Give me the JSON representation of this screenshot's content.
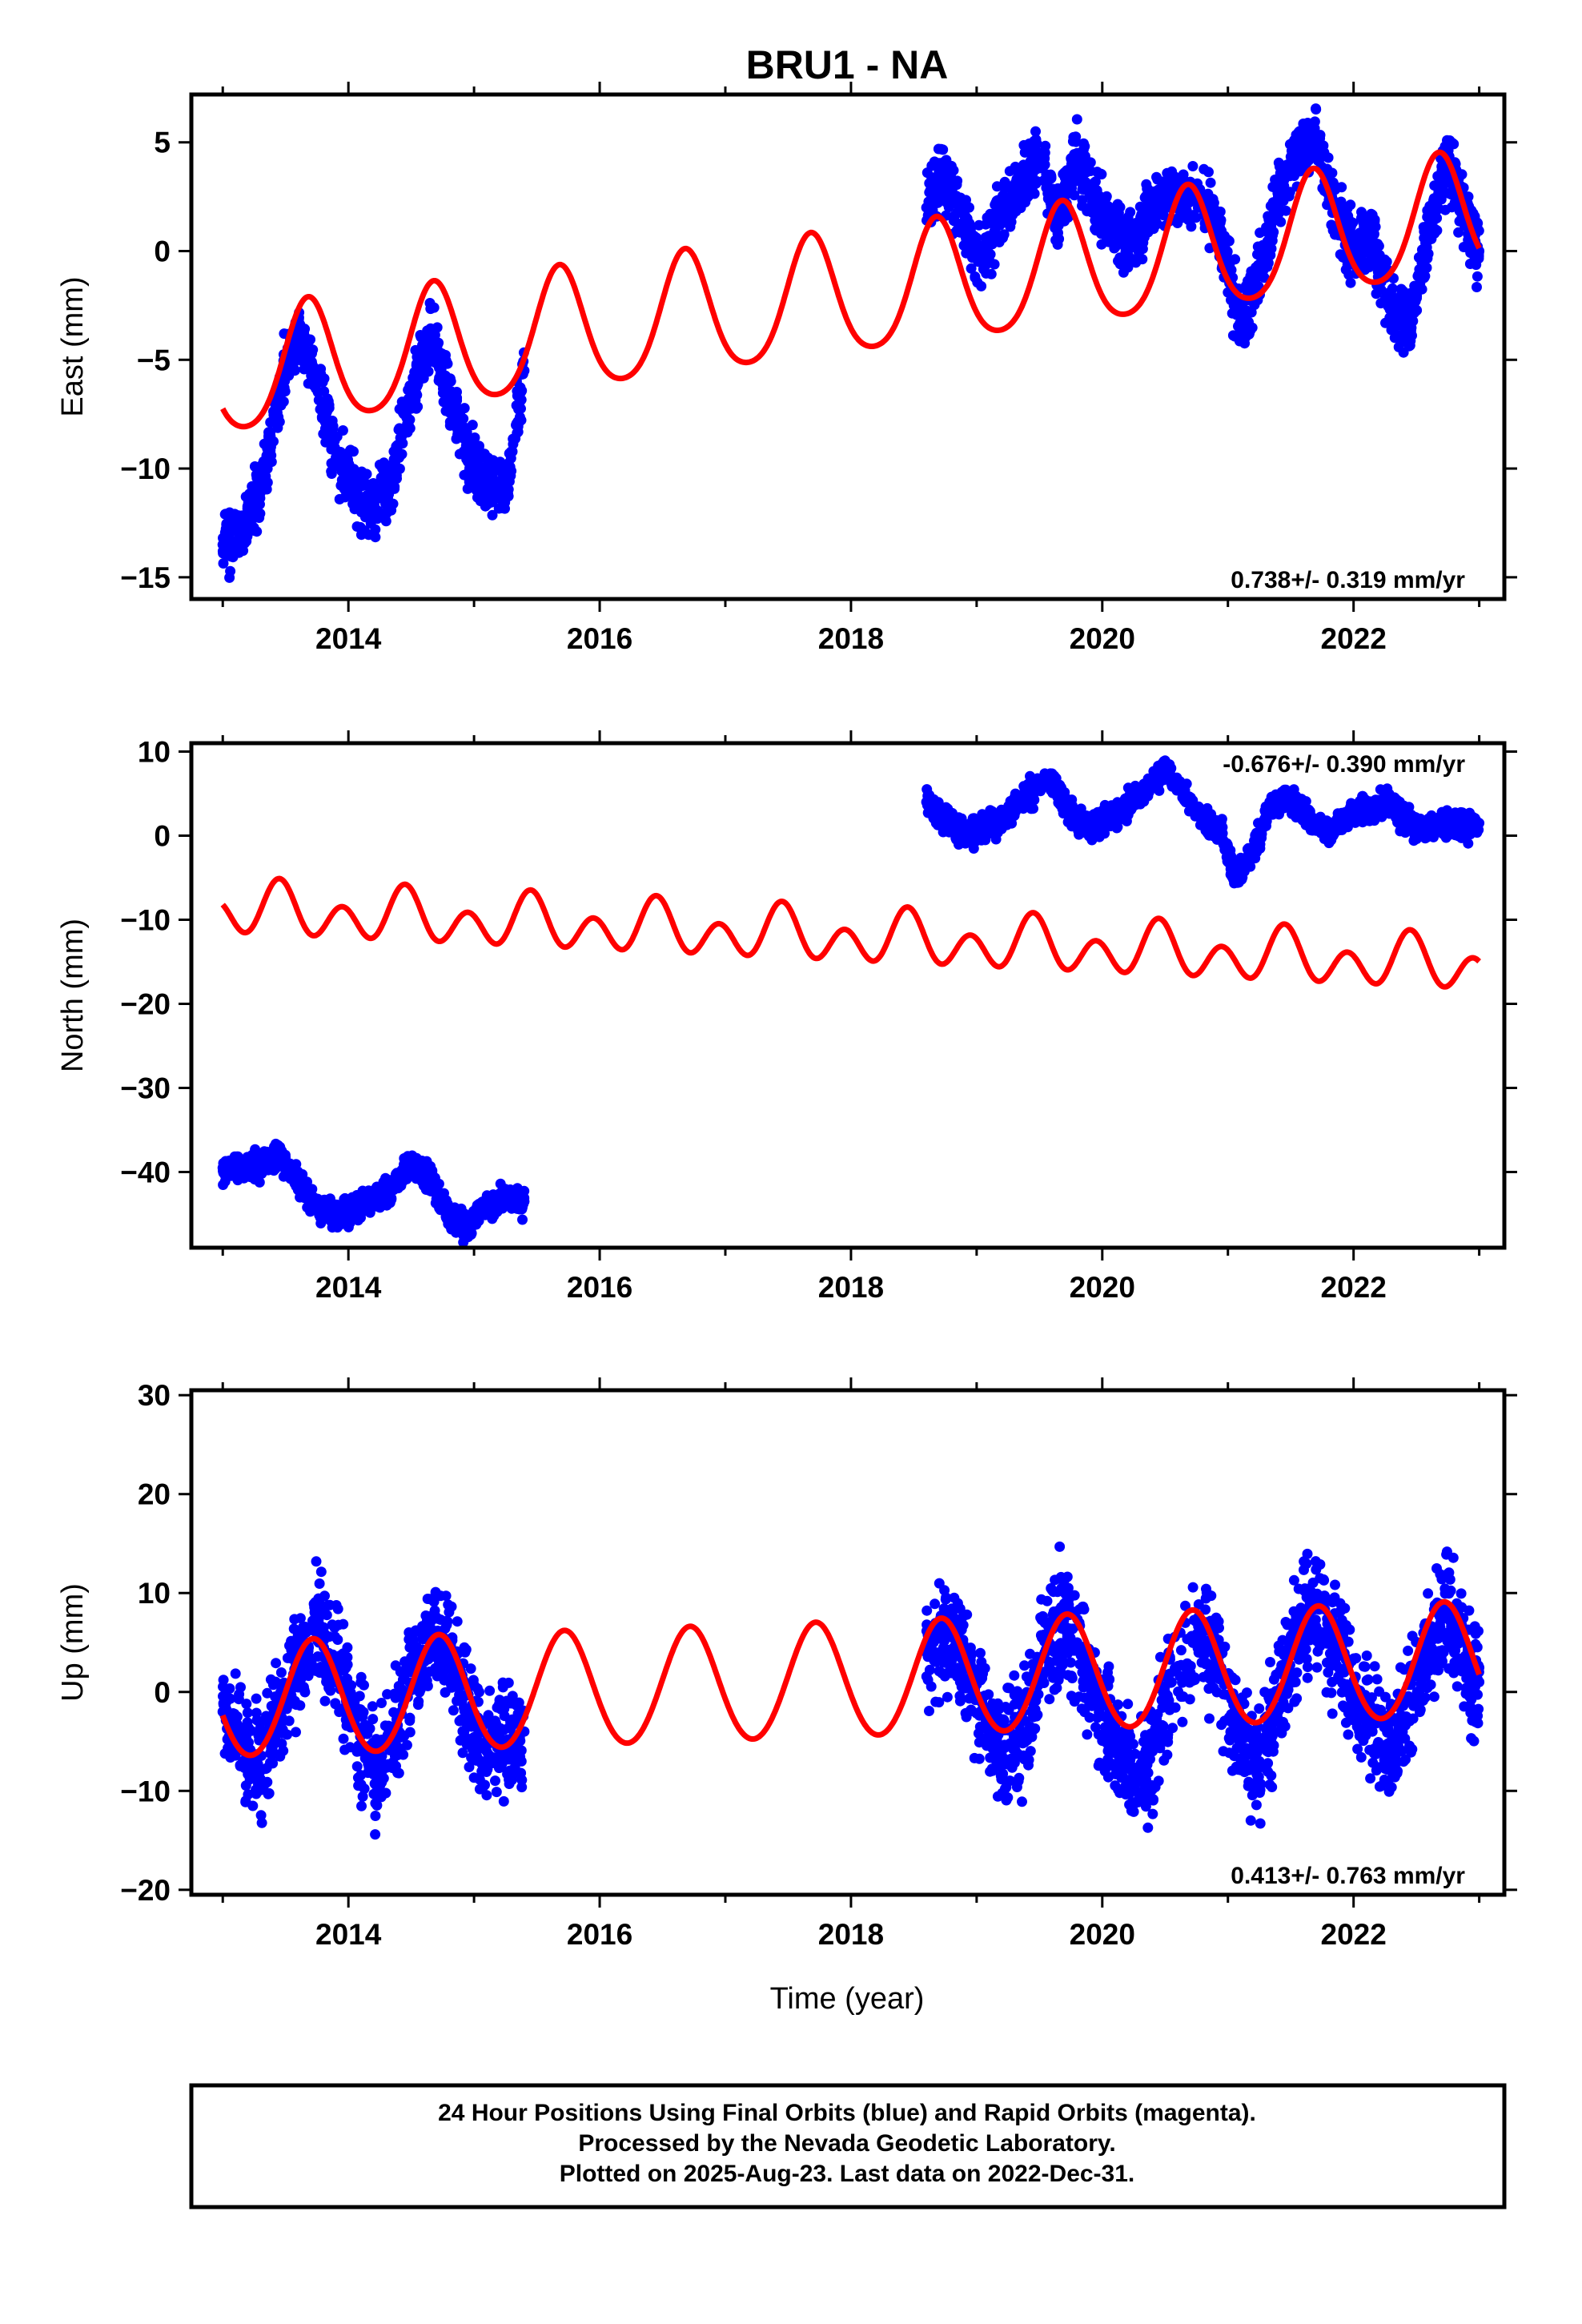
{
  "chart_title": "BRU1 - NA",
  "x_axis_label": "Time (year)",
  "footer": {
    "line1": "24 Hour Positions Using Final Orbits (blue) and Rapid Orbits (magenta).",
    "line2": "Processed by the Nevada Geodetic Laboratory.",
    "line3": "Plotted on 2025-Aug-23. Last data on 2022-Dec-31."
  },
  "colors": {
    "points": "#0000ff",
    "fit": "#ff0000",
    "axes": "#000000"
  },
  "chart_data": [
    {
      "type": "scatter",
      "title": "BRU1 - NA",
      "ylabel": "East (mm)",
      "xlabel": "",
      "xlim": [
        2012.75,
        2023.2
      ],
      "ylim": [
        -16,
        7.2
      ],
      "xticks": [
        2014,
        2016,
        2018,
        2020,
        2022
      ],
      "yticks": [
        5,
        0,
        -5,
        -10,
        -15
      ],
      "ytick_labels": [
        "5",
        "0",
        "−5",
        "−10",
        "−15"
      ],
      "rate_label": "0.738+/- 0.319 mm/yr",
      "rate_label_position": "bottom-right",
      "grid": false,
      "series": [
        {
          "kind": "points",
          "x": [
            2013.0,
            2013.15,
            2013.3,
            2013.45,
            2013.6,
            2013.75,
            2013.9,
            2014.05,
            2014.2,
            2014.35,
            2014.5,
            2014.65,
            2014.8,
            2014.95,
            2015.1,
            2015.25,
            2015.4,
            2018.6,
            2018.75,
            2018.9,
            2019.05,
            2019.2,
            2019.35,
            2019.5,
            2019.65,
            2019.8,
            2019.95,
            2020.1,
            2020.25,
            2020.4,
            2020.55,
            2020.8,
            2020.95,
            2021.1,
            2021.25,
            2021.4,
            2021.55,
            2021.7,
            2021.85,
            2022.0,
            2022.15,
            2022.3,
            2022.45,
            2022.6,
            2022.75,
            2022.9,
            2023.0
          ],
          "y": [
            -13.5,
            -13.0,
            -11.0,
            -6.5,
            -3.5,
            -6.0,
            -9.5,
            -11.0,
            -12.0,
            -10.5,
            -6.5,
            -4.0,
            -6.5,
            -9.5,
            -10.5,
            -11.0,
            -5.5,
            2.0,
            3.5,
            1.0,
            -0.5,
            2.0,
            3.0,
            4.5,
            1.5,
            4.5,
            2.0,
            1.0,
            0.5,
            2.0,
            2.5,
            2.5,
            0.5,
            -3.5,
            -1.0,
            2.5,
            4.5,
            5.0,
            2.0,
            0.0,
            0.5,
            -2.5,
            -3.5,
            1.0,
            4.0,
            1.5,
            0.0
          ]
        },
        {
          "kind": "fit",
          "intercept_2013": -5.8,
          "trend_mm_per_yr": 0.738,
          "annual_amplitude": 2.8,
          "annual_peak": 2013.68,
          "semiannual_amplitude": 0.4
        }
      ]
    },
    {
      "type": "scatter",
      "title": "",
      "ylabel": "North (mm)",
      "xlabel": "",
      "xlim": [
        2012.75,
        2023.2
      ],
      "ylim": [
        -49,
        11
      ],
      "xticks": [
        2014,
        2016,
        2018,
        2020,
        2022
      ],
      "yticks": [
        10,
        0,
        -10,
        -20,
        -30,
        -40
      ],
      "ytick_labels": [
        "10",
        "0",
        "−10",
        "−20",
        "−30",
        "−40"
      ],
      "rate_label": "-0.676+/- 0.390 mm/yr",
      "rate_label_position": "top-right",
      "grid": false,
      "series": [
        {
          "kind": "points",
          "x": [
            2013.0,
            2013.15,
            2013.3,
            2013.45,
            2013.6,
            2013.75,
            2013.9,
            2014.05,
            2014.2,
            2014.35,
            2014.5,
            2014.65,
            2014.8,
            2014.95,
            2015.1,
            2015.25,
            2015.4,
            2018.6,
            2018.75,
            2018.9,
            2019.05,
            2019.2,
            2019.4,
            2019.6,
            2019.75,
            2019.9,
            2020.05,
            2020.2,
            2020.35,
            2020.5,
            2020.8,
            2020.95,
            2021.05,
            2021.2,
            2021.35,
            2021.5,
            2021.65,
            2021.8,
            2021.95,
            2022.1,
            2022.25,
            2022.4,
            2022.55,
            2022.7,
            2022.85,
            2023.0
          ],
          "y": [
            -39.5,
            -39.5,
            -39.0,
            -38.0,
            -41.0,
            -44.0,
            -45.0,
            -44.5,
            -43.0,
            -42.0,
            -39.0,
            -41.0,
            -45.0,
            -46.5,
            -44.0,
            -43.0,
            -43.5,
            4.0,
            2.0,
            0.0,
            1.0,
            1.5,
            5.0,
            6.5,
            2.5,
            1.0,
            2.0,
            3.5,
            5.5,
            8.0,
            2.0,
            0.5,
            -5.0,
            -2.0,
            4.0,
            4.5,
            2.0,
            0.5,
            2.5,
            3.0,
            4.0,
            2.0,
            0.5,
            1.5,
            1.0,
            1.5
          ]
        },
        {
          "kind": "fit",
          "intercept_2013": -8.8,
          "trend_mm_per_yr": -0.676,
          "annual_amplitude": 1.5,
          "annual_peak": 2013.45,
          "semiannual_amplitude": 2.5
        }
      ]
    },
    {
      "type": "scatter",
      "title": "",
      "ylabel": "Up (mm)",
      "xlabel": "Time (year)",
      "xlim": [
        2012.75,
        2023.2
      ],
      "ylim": [
        -20.5,
        30.5
      ],
      "xticks": [
        2014,
        2016,
        2018,
        2020,
        2022
      ],
      "yticks": [
        30,
        20,
        10,
        0,
        -10,
        -20
      ],
      "ytick_labels": [
        "30",
        "20",
        "10",
        "0",
        "−10",
        "−20"
      ],
      "rate_label": "0.413+/- 0.763 mm/yr",
      "rate_label_position": "bottom-right",
      "grid": false,
      "series": [
        {
          "kind": "points",
          "x": [
            2013.0,
            2013.15,
            2013.3,
            2013.45,
            2013.6,
            2013.75,
            2013.9,
            2014.05,
            2014.2,
            2014.35,
            2014.5,
            2014.65,
            2014.8,
            2014.95,
            2015.1,
            2015.25,
            2015.4,
            2018.6,
            2018.75,
            2018.9,
            2019.05,
            2019.2,
            2019.35,
            2019.5,
            2019.65,
            2019.8,
            2019.95,
            2020.1,
            2020.25,
            2020.4,
            2020.55,
            2020.8,
            2020.95,
            2021.1,
            2021.25,
            2021.4,
            2021.55,
            2021.7,
            2021.85,
            2022.0,
            2022.15,
            2022.3,
            2022.45,
            2022.6,
            2022.75,
            2022.9,
            2023.0
          ],
          "y": [
            -2.0,
            -5.0,
            -8.0,
            -3.0,
            4.0,
            7.0,
            3.0,
            -3.0,
            -8.0,
            -5.0,
            2.0,
            6.0,
            4.0,
            -2.0,
            -6.0,
            -5.0,
            -4.0,
            4.0,
            6.0,
            3.0,
            -2.0,
            -6.0,
            -4.0,
            2.0,
            7.0,
            5.0,
            -1.0,
            -5.0,
            -9.0,
            -6.0,
            1.0,
            6.0,
            2.0,
            -5.0,
            -7.0,
            -2.0,
            6.0,
            9.0,
            5.0,
            0.0,
            -4.0,
            -5.0,
            -1.0,
            5.0,
            8.0,
            3.0,
            1.0
          ]
        },
        {
          "kind": "fit",
          "intercept_2013": -1.0,
          "trend_mm_per_yr": 0.413,
          "annual_amplitude": 5.8,
          "annual_peak": 2013.72,
          "semiannual_amplitude": 0.3
        }
      ]
    }
  ]
}
